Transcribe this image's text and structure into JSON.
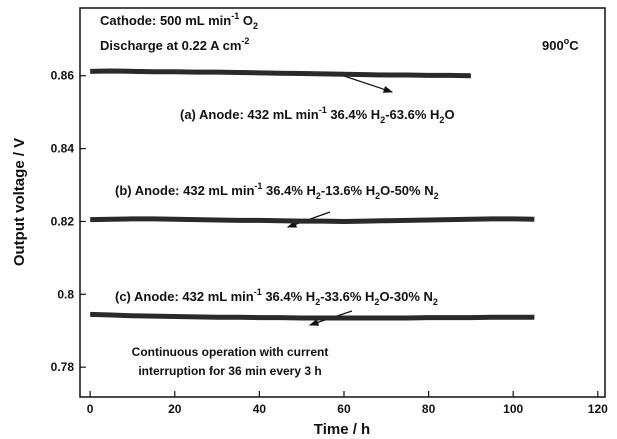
{
  "chart_data": {
    "type": "line",
    "xlabel": "Time / h",
    "ylabel": "Output voltage / V",
    "xlim": [
      -2.4,
      121.7
    ],
    "ylim": [
      0.7718,
      0.8786
    ],
    "xticks": [
      0,
      20,
      40,
      60,
      80,
      100,
      120
    ],
    "yticks": [
      0.78,
      0.8,
      0.82,
      0.84,
      0.86
    ],
    "series": [
      {
        "color": "#2a2a2a",
        "x": [
          0,
          5,
          10,
          15,
          20,
          25,
          30,
          35,
          40,
          45,
          50,
          55,
          60,
          65,
          70,
          75,
          80,
          85,
          90
        ],
        "values": [
          0.8612,
          0.8613,
          0.8612,
          0.8611,
          0.8611,
          0.861,
          0.861,
          0.8609,
          0.8608,
          0.8607,
          0.8606,
          0.8605,
          0.8604,
          0.8603,
          0.8602,
          0.8602,
          0.8601,
          0.8601,
          0.86
        ]
      },
      {
        "color": "#2a2a2a",
        "x": [
          0,
          5,
          10,
          15,
          20,
          25,
          30,
          35,
          40,
          45,
          50,
          55,
          60,
          65,
          70,
          75,
          80,
          85,
          90,
          95,
          100,
          105
        ],
        "values": [
          0.8205,
          0.8206,
          0.8207,
          0.8207,
          0.8206,
          0.8205,
          0.8204,
          0.8203,
          0.8203,
          0.8202,
          0.8201,
          0.8201,
          0.82,
          0.8201,
          0.8202,
          0.8203,
          0.8204,
          0.8205,
          0.8206,
          0.8207,
          0.8207,
          0.8206
        ]
      },
      {
        "color": "#2a2a2a",
        "x": [
          0,
          5,
          10,
          15,
          20,
          25,
          30,
          35,
          40,
          45,
          50,
          55,
          60,
          65,
          70,
          75,
          80,
          85,
          90,
          95,
          100,
          105
        ],
        "values": [
          0.7945,
          0.7943,
          0.7941,
          0.794,
          0.7939,
          0.7938,
          0.7937,
          0.7937,
          0.7936,
          0.7936,
          0.7935,
          0.7935,
          0.7935,
          0.7935,
          0.7935,
          0.7935,
          0.7936,
          0.7936,
          0.7936,
          0.7937,
          0.7937,
          0.7937
        ]
      }
    ],
    "annotations": [
      {
        "parts": [
          {
            "text": "Cathode: 500 mL min"
          },
          {
            "text": "-1",
            "shift": "sup"
          },
          {
            "text": " O"
          },
          {
            "text": "2",
            "shift": "sub"
          }
        ]
      },
      {
        "parts": [
          {
            "text": "Discharge at 0.22 A cm"
          },
          {
            "text": "-2",
            "shift": "sup"
          }
        ]
      },
      {
        "parts": [
          {
            "text": "900"
          },
          {
            "text": "o",
            "shift": "sup"
          },
          {
            "text": "C"
          }
        ]
      },
      {
        "parts": [
          {
            "text": "(a) Anode: 432 mL min"
          },
          {
            "text": "-1",
            "shift": "sup"
          },
          {
            "text": " 36.4% H"
          },
          {
            "text": "2",
            "shift": "sub"
          },
          {
            "text": "-63.6% H"
          },
          {
            "text": "2",
            "shift": "sub"
          },
          {
            "text": "O"
          }
        ]
      },
      {
        "parts": [
          {
            "text": "(b) Anode: 432 mL min"
          },
          {
            "text": "-1",
            "shift": "sup"
          },
          {
            "text": " 36.4% H"
          },
          {
            "text": "2",
            "shift": "sub"
          },
          {
            "text": "-13.6% H"
          },
          {
            "text": "2",
            "shift": "sub"
          },
          {
            "text": "O-50% N"
          },
          {
            "text": "2",
            "shift": "sub"
          }
        ]
      },
      {
        "parts": [
          {
            "text": "(c) Anode: 432 mL min"
          },
          {
            "text": "-1",
            "shift": "sup"
          },
          {
            "text": " 36.4% H"
          },
          {
            "text": "2",
            "shift": "sub"
          },
          {
            "text": "-33.6% H"
          },
          {
            "text": "2",
            "shift": "sub"
          },
          {
            "text": "O-30% N"
          },
          {
            "text": "2",
            "shift": "sub"
          }
        ]
      },
      {
        "parts": [
          {
            "text": "Continuous operation with current"
          }
        ]
      },
      {
        "parts": [
          {
            "text": "interruption for 36 min every 3 h"
          }
        ]
      }
    ]
  }
}
